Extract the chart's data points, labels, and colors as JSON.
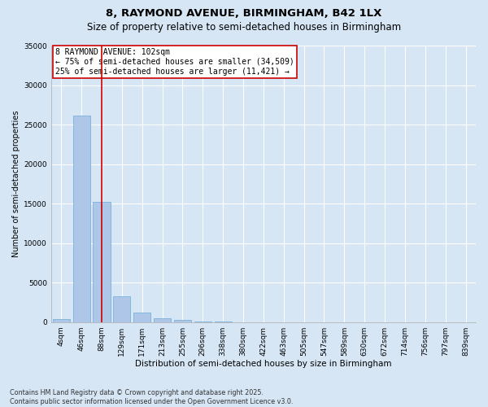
{
  "title_line1": "8, RAYMOND AVENUE, BIRMINGHAM, B42 1LX",
  "title_line2": "Size of property relative to semi-detached houses in Birmingham",
  "xlabel": "Distribution of semi-detached houses by size in Birmingham",
  "ylabel": "Number of semi-detached properties",
  "categories": [
    "4sqm",
    "46sqm",
    "88sqm",
    "129sqm",
    "171sqm",
    "213sqm",
    "255sqm",
    "296sqm",
    "338sqm",
    "380sqm",
    "422sqm",
    "463sqm",
    "505sqm",
    "547sqm",
    "589sqm",
    "630sqm",
    "672sqm",
    "714sqm",
    "756sqm",
    "797sqm",
    "839sqm"
  ],
  "values": [
    400,
    26100,
    15200,
    3300,
    1200,
    500,
    250,
    100,
    50,
    20,
    10,
    5,
    0,
    0,
    0,
    0,
    0,
    0,
    0,
    0,
    0
  ],
  "bar_color": "#aec6e8",
  "bar_edge_color": "#6aaad4",
  "vline_x": 2,
  "vline_color": "#cc0000",
  "annotation_text": "8 RAYMOND AVENUE: 102sqm\n← 75% of semi-detached houses are smaller (34,509)\n25% of semi-detached houses are larger (11,421) →",
  "annotation_box_color": "#ffffff",
  "annotation_box_edge": "#cc0000",
  "ylim": [
    0,
    35000
  ],
  "yticks": [
    0,
    5000,
    10000,
    15000,
    20000,
    25000,
    30000,
    35000
  ],
  "bg_color": "#d6e6f5",
  "plot_bg_color": "#d6e6f5",
  "footer_text": "Contains HM Land Registry data © Crown copyright and database right 2025.\nContains public sector information licensed under the Open Government Licence v3.0.",
  "title_fontsize": 9.5,
  "subtitle_fontsize": 8.5,
  "axis_label_fontsize": 7.5,
  "tick_fontsize": 6.5,
  "annotation_fontsize": 7,
  "ylabel_fontsize": 7
}
